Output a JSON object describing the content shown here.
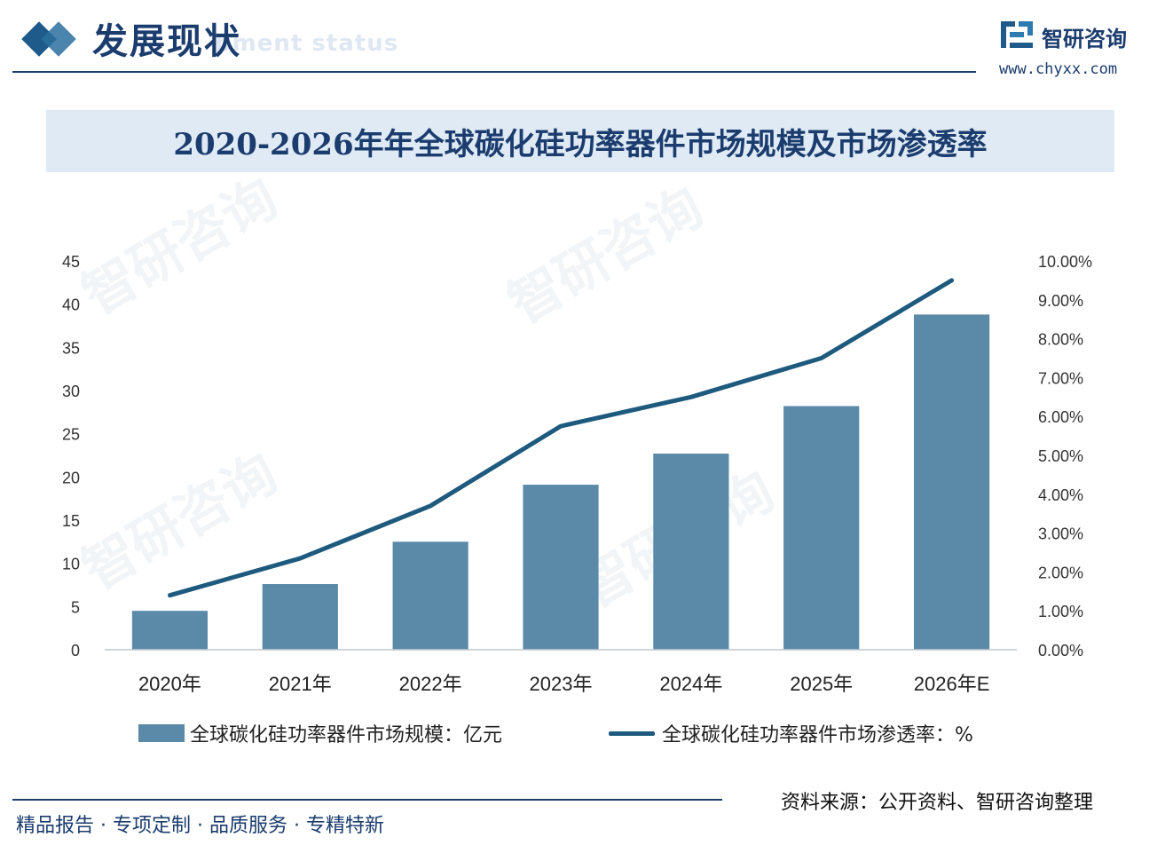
{
  "header": {
    "title": "发展现状",
    "subtitle_faded": "pment status"
  },
  "brand": {
    "name": "智研咨询",
    "url": "www.chyxx.com"
  },
  "watermark_text": "智研咨询",
  "chart_data": {
    "type": "bar+line",
    "title": "2020-2026年年全球碳化硅功率器件市场规模及市场渗透率",
    "categories": [
      "2020年",
      "2021年",
      "2022年",
      "2023年",
      "2024年",
      "2025年",
      "2026年E"
    ],
    "series": [
      {
        "name": "全球碳化硅功率器件市场规模：亿元",
        "type": "bar",
        "axis": "left",
        "color": "#5a8aa8",
        "values": [
          4.5,
          7.6,
          12.5,
          19.1,
          22.7,
          28.2,
          38.8
        ]
      },
      {
        "name": "全球碳化硅功率器件市场渗透率：%",
        "type": "line",
        "axis": "right",
        "color": "#1e5a7e",
        "values": [
          1.4,
          2.35,
          3.7,
          5.75,
          6.5,
          7.5,
          9.5
        ]
      }
    ],
    "left_axis": {
      "min": 0,
      "max": 45,
      "ticks": [
        "0",
        "5",
        "10",
        "15",
        "20",
        "25",
        "30",
        "35",
        "40",
        "45"
      ]
    },
    "right_axis": {
      "min": 0,
      "max": 10,
      "ticks": [
        "0.00%",
        "1.00%",
        "2.00%",
        "3.00%",
        "4.00%",
        "5.00%",
        "6.00%",
        "7.00%",
        "8.00%",
        "9.00%",
        "10.00%"
      ]
    },
    "grid": false,
    "legend_position": "bottom"
  },
  "footer": {
    "source": "资料来源：公开资料、智研咨询整理",
    "tagline": "精品报告 · 专项定制 · 品质服务 · 专精特新"
  }
}
